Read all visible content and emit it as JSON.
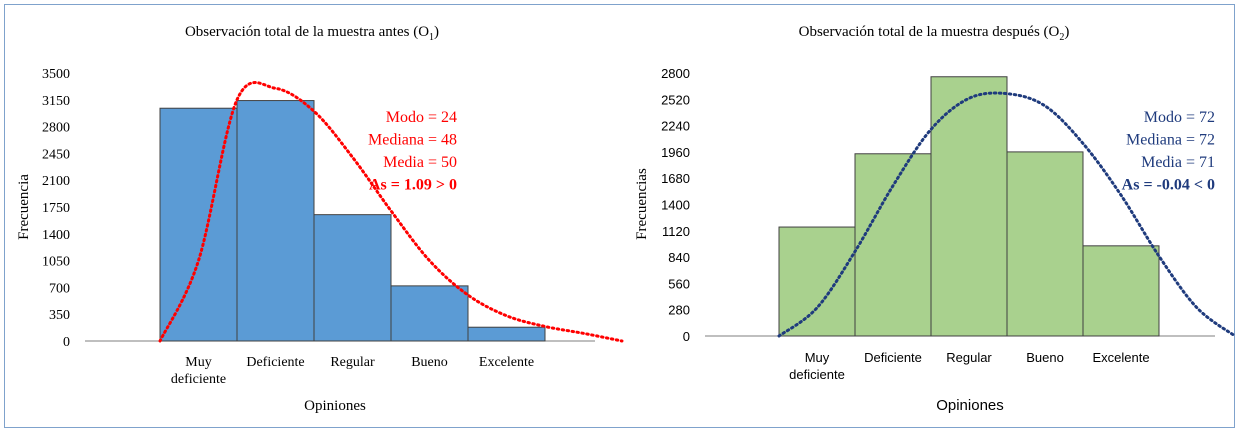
{
  "chart_data": [
    {
      "type": "bar",
      "title": "Observación total de la muestra antes (O",
      "title_sub": "1",
      "title_end": ")",
      "xlabel": "Opiniones",
      "ylabel": "Frecuencia",
      "categories": [
        "Muy deficiente",
        "Deficiente",
        "Regular",
        "Bueno",
        "Excelente"
      ],
      "category_lines": [
        [
          "Muy",
          "deficiente"
        ],
        [
          "Deficiente"
        ],
        [
          "Regular"
        ],
        [
          "Bueno"
        ],
        [
          "Excelente"
        ]
      ],
      "values": [
        3040,
        3140,
        1650,
        720,
        180
      ],
      "yticks": [
        0,
        350,
        700,
        1050,
        1400,
        1750,
        2100,
        2450,
        2800,
        3150,
        3500
      ],
      "ylim": [
        0,
        3500
      ],
      "bar_color": "#5b9bd5",
      "curve_color": "#ff0000",
      "curve": {
        "type": "right-skewed",
        "x": [
          -0.5,
          0,
          0.5,
          1,
          1.5,
          2,
          2.5,
          3,
          3.5,
          4,
          4.5,
          5,
          5.5
        ],
        "y": [
          0,
          1050,
          3150,
          3300,
          3000,
          2400,
          1700,
          1050,
          600,
          330,
          190,
          100,
          0
        ]
      },
      "annotations": [
        "Modo = 24",
        "Mediana = 48",
        "Media = 50",
        "As = 1.09 > 0"
      ],
      "annotation_color": "#ff0000",
      "grid": false
    },
    {
      "type": "bar",
      "title": "Observación total de la muestra después (O",
      "title_sub": "2",
      "title_end": ")",
      "xlabel": "Opiniones",
      "ylabel": "Frecuencias",
      "categories": [
        "Muy deficiente",
        "Deficiente",
        "Regular",
        "Bueno",
        "Excelente"
      ],
      "category_lines": [
        [
          "Muy",
          "deficiente"
        ],
        [
          "Deficiente"
        ],
        [
          "Regular"
        ],
        [
          "Bueno"
        ],
        [
          "Excelente"
        ]
      ],
      "values": [
        1160,
        1940,
        2760,
        1960,
        960
      ],
      "yticks": [
        0,
        280,
        560,
        840,
        1120,
        1400,
        1680,
        1960,
        2240,
        2520,
        2800
      ],
      "ylim": [
        0,
        2800
      ],
      "bar_color": "#a9d18e",
      "curve_color": "#1f3b7d",
      "curve": {
        "type": "symmetric",
        "x": [
          -0.5,
          0,
          0.5,
          1,
          1.5,
          2,
          2.5,
          3,
          3.5,
          4,
          4.5,
          5,
          5.5
        ],
        "y": [
          0,
          300,
          900,
          1600,
          2200,
          2530,
          2580,
          2450,
          2050,
          1500,
          850,
          300,
          0
        ]
      },
      "annotations": [
        "Modo = 72",
        "Mediana = 72",
        "Media = 71",
        "As = -0.04 < 0"
      ],
      "annotation_color": "#1f3b7d",
      "grid": false
    }
  ]
}
